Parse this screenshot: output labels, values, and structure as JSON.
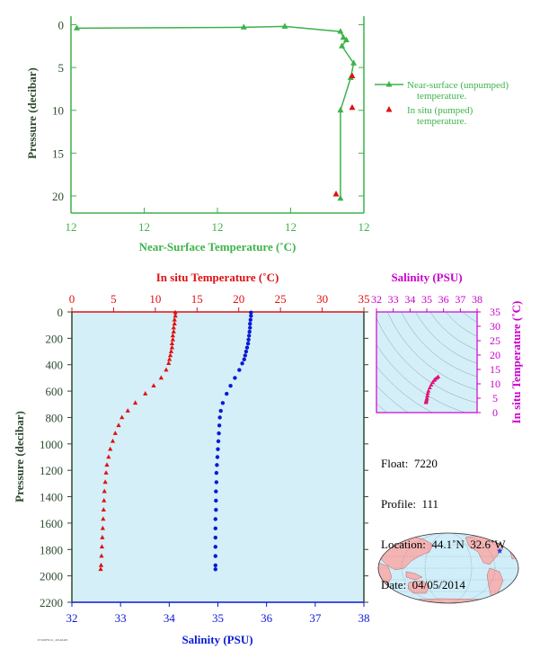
{
  "colors": {
    "green": "#3cb34a",
    "red": "#e01010",
    "blue": "#0a1ad6",
    "magenta": "#cc00cc",
    "axis_dark": "#2e4a2e",
    "plot_bg": "#d4eff8",
    "land": "#f4b4b4",
    "ocean": "#cfeefa"
  },
  "chart_data": [
    {
      "type": "line",
      "name": "near-surface-chart",
      "title": "",
      "xlabel": "Near-Surface Temperature (˚C)",
      "ylabel": "Pressure (decibar)",
      "xlim": [
        0,
        1
      ],
      "ylim": [
        22,
        -1
      ],
      "x_tick_labels": [
        "12",
        "12",
        "12",
        "12",
        "12"
      ],
      "y_ticks": [
        0,
        5,
        10,
        15,
        20
      ],
      "legend_position": "right",
      "series": [
        {
          "name": "Near-surface (unpumped) temperature.",
          "marker": "triangle",
          "color": "#3cb34a",
          "points": [
            {
              "x": 0.02,
              "y": 0.4
            },
            {
              "x": 0.59,
              "y": 0.3
            },
            {
              "x": 0.73,
              "y": 0.2
            },
            {
              "x": 0.92,
              "y": 0.8
            },
            {
              "x": 0.93,
              "y": 1.5
            },
            {
              "x": 0.94,
              "y": 1.8
            },
            {
              "x": 0.925,
              "y": 2.5
            },
            {
              "x": 0.965,
              "y": 4.5
            },
            {
              "x": 0.955,
              "y": 6.2
            },
            {
              "x": 0.92,
              "y": 10.0
            },
            {
              "x": 0.92,
              "y": 20.3
            }
          ]
        },
        {
          "name": "In situ (pumped) temperature.",
          "marker": "triangle",
          "color": "#e01010",
          "points": [
            {
              "x": 0.96,
              "y": 6.0
            },
            {
              "x": 0.96,
              "y": 9.7
            },
            {
              "x": 0.905,
              "y": 19.8
            }
          ]
        }
      ]
    },
    {
      "type": "scatter",
      "name": "profile-chart",
      "title": "",
      "ylabel": "Pressure (decibar)",
      "top_xlabel": "In situ Temperature (˚C)",
      "bottom_xlabel": "Salinity (PSU)",
      "ylim": [
        2200,
        0
      ],
      "y_ticks": [
        0,
        200,
        400,
        600,
        800,
        1000,
        1200,
        1400,
        1600,
        1800,
        2000,
        2200
      ],
      "top_xlim": [
        0,
        35
      ],
      "top_x_ticks": [
        0,
        5,
        10,
        15,
        20,
        25,
        30,
        35
      ],
      "bottom_xlim": [
        32,
        38
      ],
      "bottom_x_ticks": [
        32,
        33,
        34,
        35,
        36,
        37,
        38
      ],
      "temperature": [
        {
          "t": 12.4,
          "p": 5
        },
        {
          "t": 12.4,
          "p": 30
        },
        {
          "t": 12.3,
          "p": 60
        },
        {
          "t": 12.3,
          "p": 90
        },
        {
          "t": 12.2,
          "p": 120
        },
        {
          "t": 12.2,
          "p": 150
        },
        {
          "t": 12.1,
          "p": 180
        },
        {
          "t": 12.1,
          "p": 210
        },
        {
          "t": 12.0,
          "p": 240
        },
        {
          "t": 12.0,
          "p": 270
        },
        {
          "t": 11.9,
          "p": 300
        },
        {
          "t": 11.8,
          "p": 330
        },
        {
          "t": 11.7,
          "p": 360
        },
        {
          "t": 11.6,
          "p": 390
        },
        {
          "t": 11.3,
          "p": 440
        },
        {
          "t": 10.7,
          "p": 500
        },
        {
          "t": 9.8,
          "p": 560
        },
        {
          "t": 8.8,
          "p": 620
        },
        {
          "t": 7.6,
          "p": 690
        },
        {
          "t": 6.7,
          "p": 750
        },
        {
          "t": 6.0,
          "p": 800
        },
        {
          "t": 5.6,
          "p": 860
        },
        {
          "t": 5.2,
          "p": 920
        },
        {
          "t": 4.9,
          "p": 980
        },
        {
          "t": 4.6,
          "p": 1040
        },
        {
          "t": 4.4,
          "p": 1100
        },
        {
          "t": 4.2,
          "p": 1160
        },
        {
          "t": 4.1,
          "p": 1220
        },
        {
          "t": 4.0,
          "p": 1290
        },
        {
          "t": 3.9,
          "p": 1360
        },
        {
          "t": 3.85,
          "p": 1430
        },
        {
          "t": 3.8,
          "p": 1500
        },
        {
          "t": 3.75,
          "p": 1570
        },
        {
          "t": 3.7,
          "p": 1640
        },
        {
          "t": 3.65,
          "p": 1710
        },
        {
          "t": 3.6,
          "p": 1780
        },
        {
          "t": 3.55,
          "p": 1850
        },
        {
          "t": 3.5,
          "p": 1920
        },
        {
          "t": 3.45,
          "p": 1950
        }
      ],
      "salinity": [
        {
          "s": 35.68,
          "p": 5
        },
        {
          "s": 35.68,
          "p": 30
        },
        {
          "s": 35.67,
          "p": 60
        },
        {
          "s": 35.66,
          "p": 90
        },
        {
          "s": 35.66,
          "p": 120
        },
        {
          "s": 35.65,
          "p": 150
        },
        {
          "s": 35.64,
          "p": 180
        },
        {
          "s": 35.63,
          "p": 210
        },
        {
          "s": 35.62,
          "p": 240
        },
        {
          "s": 35.6,
          "p": 270
        },
        {
          "s": 35.58,
          "p": 300
        },
        {
          "s": 35.56,
          "p": 330
        },
        {
          "s": 35.54,
          "p": 360
        },
        {
          "s": 35.5,
          "p": 390
        },
        {
          "s": 35.44,
          "p": 440
        },
        {
          "s": 35.35,
          "p": 500
        },
        {
          "s": 35.26,
          "p": 560
        },
        {
          "s": 35.18,
          "p": 620
        },
        {
          "s": 35.1,
          "p": 690
        },
        {
          "s": 35.06,
          "p": 750
        },
        {
          "s": 35.04,
          "p": 800
        },
        {
          "s": 35.03,
          "p": 860
        },
        {
          "s": 35.02,
          "p": 920
        },
        {
          "s": 35.01,
          "p": 980
        },
        {
          "s": 35.0,
          "p": 1040
        },
        {
          "s": 34.99,
          "p": 1100
        },
        {
          "s": 34.98,
          "p": 1160
        },
        {
          "s": 34.97,
          "p": 1220
        },
        {
          "s": 34.97,
          "p": 1290
        },
        {
          "s": 34.96,
          "p": 1360
        },
        {
          "s": 34.96,
          "p": 1430
        },
        {
          "s": 34.96,
          "p": 1500
        },
        {
          "s": 34.95,
          "p": 1570
        },
        {
          "s": 34.95,
          "p": 1640
        },
        {
          "s": 34.95,
          "p": 1710
        },
        {
          "s": 34.95,
          "p": 1780
        },
        {
          "s": 34.95,
          "p": 1850
        },
        {
          "s": 34.95,
          "p": 1920
        },
        {
          "s": 34.95,
          "p": 1950
        }
      ]
    },
    {
      "type": "scatter",
      "name": "ts-diagram",
      "title": "",
      "xlabel": "Salinity (PSU)",
      "ylabel": "In situ Temperature (˚C)",
      "xlim": [
        32,
        38
      ],
      "ylim": [
        0,
        35
      ],
      "x_ticks": [
        32,
        33,
        34,
        35,
        36,
        37,
        38
      ],
      "y_ticks": [
        0,
        5,
        10,
        15,
        20,
        25,
        30,
        35
      ],
      "points": [
        {
          "s": 35.68,
          "t": 12.4
        },
        {
          "s": 35.6,
          "t": 12.0
        },
        {
          "s": 35.5,
          "t": 11.6
        },
        {
          "s": 35.44,
          "t": 11.2
        },
        {
          "s": 35.35,
          "t": 10.5
        },
        {
          "s": 35.26,
          "t": 9.6
        },
        {
          "s": 35.18,
          "t": 8.6
        },
        {
          "s": 35.1,
          "t": 7.5
        },
        {
          "s": 35.06,
          "t": 6.7
        },
        {
          "s": 35.03,
          "t": 5.8
        },
        {
          "s": 35.01,
          "t": 5.0
        },
        {
          "s": 34.99,
          "t": 4.5
        },
        {
          "s": 34.97,
          "t": 4.1
        },
        {
          "s": 34.96,
          "t": 3.8
        },
        {
          "s": 34.95,
          "t": 3.5
        }
      ]
    }
  ],
  "float_info": {
    "float": "Float:  7220",
    "profile": "Profile:  111",
    "location": "Location:  44.1˚N  32.6˚W",
    "date": "Date:  04/05/2014"
  },
  "map": {
    "float_lat": 44.1,
    "float_lon": -32.6,
    "marker_icon": "star-icon"
  },
  "footer_code": "P7220F0111_20140405"
}
